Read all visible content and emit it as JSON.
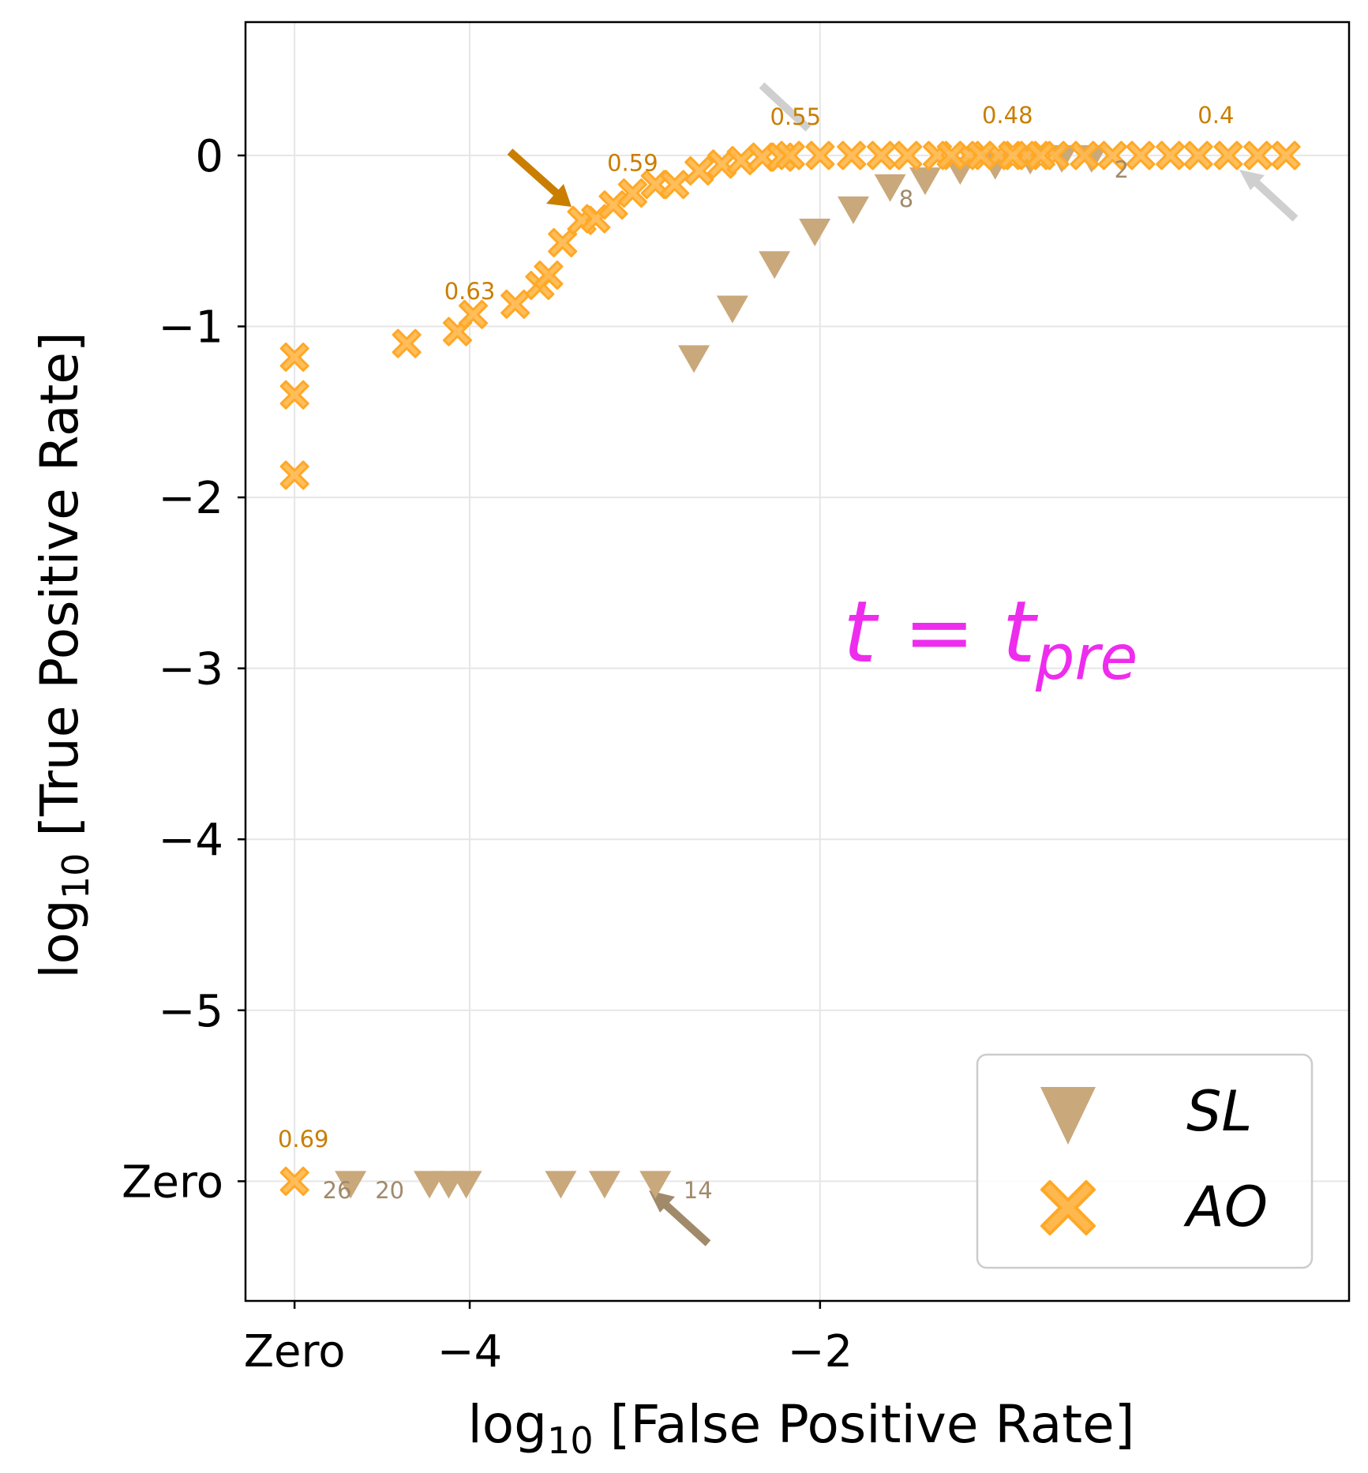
{
  "chart_data": {
    "type": "scatter",
    "xlabel": "log10 [False Positive Rate]",
    "ylabel": "log10 [True Positive Rate]",
    "xlim": [
      -5.28,
      1.02
    ],
    "ylim": [
      -6.7,
      0.78
    ],
    "x_ticks": [
      {
        "value": -5.0,
        "label": "Zero"
      },
      {
        "value": -4.0,
        "label": "−4"
      },
      {
        "value": -2.0,
        "label": "−2"
      }
    ],
    "y_ticks": [
      {
        "value": 0,
        "label": "0"
      },
      {
        "value": -1,
        "label": "−1"
      },
      {
        "value": -2,
        "label": "−2"
      },
      {
        "value": -3,
        "label": "−3"
      },
      {
        "value": -4,
        "label": "−4"
      },
      {
        "value": -5,
        "label": "−5"
      },
      {
        "value": -6,
        "label": "Zero"
      }
    ],
    "grid": true,
    "legend_position": "lower-right",
    "text_annotation": {
      "main": "t = t",
      "subscript": "pre",
      "x": -1.8,
      "y": -2.9
    },
    "colors": {
      "SL": "#c9a87b",
      "AO": "#ffa826",
      "AO_label": "#c97e00",
      "SL_label": "#a08a6a",
      "annotation": "#ee2cee"
    },
    "series": [
      {
        "name": "SL",
        "marker": "triangle-down",
        "points": [
          {
            "x": -2.72,
            "y": -1.17
          },
          {
            "x": -2.5,
            "y": -0.88
          },
          {
            "x": -2.26,
            "y": -0.62
          },
          {
            "x": -2.03,
            "y": -0.43
          },
          {
            "x": -1.81,
            "y": -0.3
          },
          {
            "x": -1.6,
            "y": -0.17
          },
          {
            "x": -1.4,
            "y": -0.13
          },
          {
            "x": -1.2,
            "y": -0.07
          },
          {
            "x": -1.0,
            "y": -0.04
          },
          {
            "x": -0.8,
            "y": -0.01
          },
          {
            "x": -0.62,
            "y": 0.0
          },
          {
            "x": -0.45,
            "y": 0.0
          },
          {
            "x": -4.68,
            "y": -6.0
          },
          {
            "x": -4.23,
            "y": -6.0
          },
          {
            "x": -4.12,
            "y": -6.0
          },
          {
            "x": -4.02,
            "y": -6.0
          },
          {
            "x": -3.48,
            "y": -6.0
          },
          {
            "x": -3.23,
            "y": -6.0
          },
          {
            "x": -2.94,
            "y": -6.0
          }
        ]
      },
      {
        "name": "AO",
        "marker": "x-filled",
        "points": [
          {
            "x": -5.0,
            "y": -1.18
          },
          {
            "x": -5.0,
            "y": -1.4
          },
          {
            "x": -5.0,
            "y": -1.87
          },
          {
            "x": -4.36,
            "y": -1.1
          },
          {
            "x": -4.07,
            "y": -1.03
          },
          {
            "x": -3.98,
            "y": -0.93
          },
          {
            "x": -3.74,
            "y": -0.87
          },
          {
            "x": -3.6,
            "y": -0.76
          },
          {
            "x": -3.55,
            "y": -0.7
          },
          {
            "x": -3.47,
            "y": -0.51
          },
          {
            "x": -3.36,
            "y": -0.38
          },
          {
            "x": -3.28,
            "y": -0.37
          },
          {
            "x": -3.18,
            "y": -0.29
          },
          {
            "x": -3.07,
            "y": -0.22
          },
          {
            "x": -2.94,
            "y": -0.17
          },
          {
            "x": -2.83,
            "y": -0.17
          },
          {
            "x": -2.69,
            "y": -0.09
          },
          {
            "x": -2.56,
            "y": -0.05
          },
          {
            "x": -2.45,
            "y": -0.03
          },
          {
            "x": -2.33,
            "y": -0.01
          },
          {
            "x": -2.22,
            "y": -0.01
          },
          {
            "x": -2.17,
            "y": 0.0
          },
          {
            "x": -2.0,
            "y": 0.0
          },
          {
            "x": -1.82,
            "y": 0.0
          },
          {
            "x": -1.65,
            "y": 0.0
          },
          {
            "x": -1.5,
            "y": 0.0
          },
          {
            "x": -1.33,
            "y": 0.0
          },
          {
            "x": -1.15,
            "y": 0.0
          },
          {
            "x": -0.98,
            "y": 0.0
          },
          {
            "x": -0.82,
            "y": 0.0
          },
          {
            "x": -0.66,
            "y": 0.0
          },
          {
            "x": -0.49,
            "y": 0.0
          },
          {
            "x": -0.33,
            "y": 0.0
          },
          {
            "x": -0.17,
            "y": 0.0
          },
          {
            "x": 0.0,
            "y": 0.0
          },
          {
            "x": 0.16,
            "y": 0.0
          },
          {
            "x": 0.33,
            "y": 0.0
          },
          {
            "x": 0.5,
            "y": 0.0
          },
          {
            "x": 0.66,
            "y": 0.0
          },
          {
            "x": -1.25,
            "y": 0.0
          },
          {
            "x": -1.08,
            "y": 0.0
          },
          {
            "x": -0.9,
            "y": 0.0
          },
          {
            "x": -0.74,
            "y": 0.0
          },
          {
            "x": -5.0,
            "y": -6.0
          }
        ]
      }
    ],
    "ao_labels": [
      {
        "text": "0.69",
        "x": -4.95,
        "y": -5.8
      },
      {
        "text": "0.63",
        "x": -4.0,
        "y": -0.84
      },
      {
        "text": "0.59",
        "x": -3.07,
        "y": -0.09
      },
      {
        "text": "0.55",
        "x": -2.14,
        "y": 0.18
      },
      {
        "text": "0.48",
        "x": -0.93,
        "y": 0.19
      },
      {
        "text": "0.4",
        "x": 0.26,
        "y": 0.19
      }
    ],
    "sl_labels": [
      {
        "text": "26",
        "x": -4.84,
        "y": -6.1
      },
      {
        "text": "20",
        "x": -4.54,
        "y": -6.1
      },
      {
        "text": "14",
        "x": -2.78,
        "y": -6.1
      },
      {
        "text": "8",
        "x": -1.55,
        "y": -0.3
      },
      {
        "text": "2",
        "x": -0.32,
        "y": -0.13
      }
    ]
  }
}
